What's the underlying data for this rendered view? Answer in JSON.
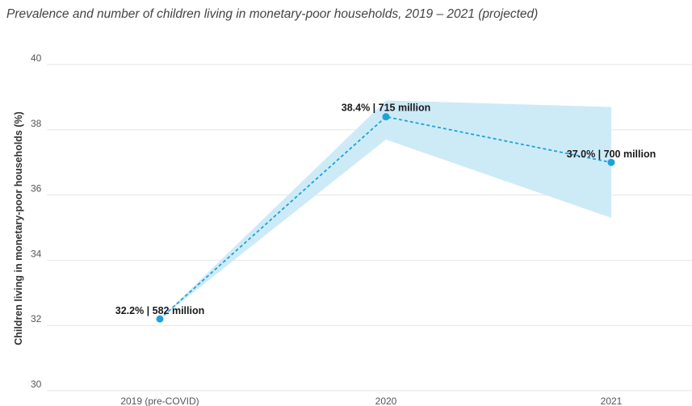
{
  "chart_data": {
    "type": "line",
    "title": "Prevalence and number of children living in monetary-poor households, 2019 – 2021 (projected)",
    "xlabel": "",
    "ylabel": "Children living in monetary-poor households (%)",
    "categories": [
      "2019 (pre-COVID)",
      "2020",
      "2021"
    ],
    "series": [
      {
        "values": [
          32.2,
          38.4,
          37.0
        ],
        "labels": [
          "32.2% | 582 million",
          "38.4% | 715 million",
          "37.0% | 700 million"
        ],
        "range_low": [
          32.2,
          37.7,
          35.3
        ],
        "range_high": [
          32.2,
          38.9,
          38.7
        ]
      }
    ],
    "yticks": [
      "30",
      "32",
      "34",
      "36",
      "38",
      "40"
    ],
    "ylim": [
      30,
      40
    ],
    "grid": true,
    "colors": {
      "line": "#1fa2d8",
      "band": "#cdebf7",
      "grid": "#e6e6e6"
    }
  }
}
